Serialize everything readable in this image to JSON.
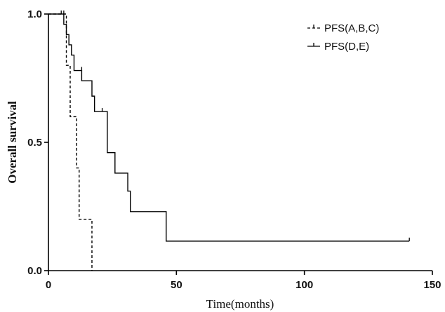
{
  "chart_data": {
    "type": "line",
    "step": true,
    "title": "",
    "xlabel": "Time(months)",
    "ylabel": "Overall survival",
    "xlim": [
      0,
      150
    ],
    "ylim": [
      0.0,
      1.0
    ],
    "x_ticks": [
      0,
      50,
      100,
      150
    ],
    "x_tick_labels": [
      "0",
      "50",
      "100",
      "150"
    ],
    "y_ticks": [
      0.0,
      0.5,
      1.0
    ],
    "y_tick_labels": [
      "0.0",
      "0.5",
      "1.0"
    ],
    "grid": false,
    "legend_position": "top-right",
    "series": [
      {
        "name": "PFS(A,B,C)",
        "dash": "dashed",
        "color": "#000000",
        "points": [
          [
            0,
            1.0
          ],
          [
            7.0,
            0.8
          ],
          [
            8.5,
            0.6
          ],
          [
            11.0,
            0.4
          ],
          [
            12.0,
            0.2
          ],
          [
            17.0,
            0.0
          ]
        ],
        "censored": [
          [
            6.0,
            1.0
          ]
        ]
      },
      {
        "name": "PFS(D,E)",
        "dash": "solid",
        "color": "#000000",
        "points": [
          [
            0,
            1.0
          ],
          [
            6.0,
            0.96
          ],
          [
            7.0,
            0.92
          ],
          [
            8.0,
            0.88
          ],
          [
            9.0,
            0.84
          ],
          [
            10.0,
            0.78
          ],
          [
            13.0,
            0.74
          ],
          [
            17.0,
            0.68
          ],
          [
            18.0,
            0.62
          ],
          [
            23.0,
            0.46
          ],
          [
            26.0,
            0.38
          ],
          [
            31.0,
            0.31
          ],
          [
            32.0,
            0.23
          ],
          [
            46.0,
            0.115
          ]
        ],
        "end_x": 141,
        "censored": [
          [
            5.0,
            1.0
          ],
          [
            13.0,
            0.78
          ],
          [
            21.0,
            0.62
          ],
          [
            141.0,
            0.115
          ]
        ]
      }
    ]
  }
}
